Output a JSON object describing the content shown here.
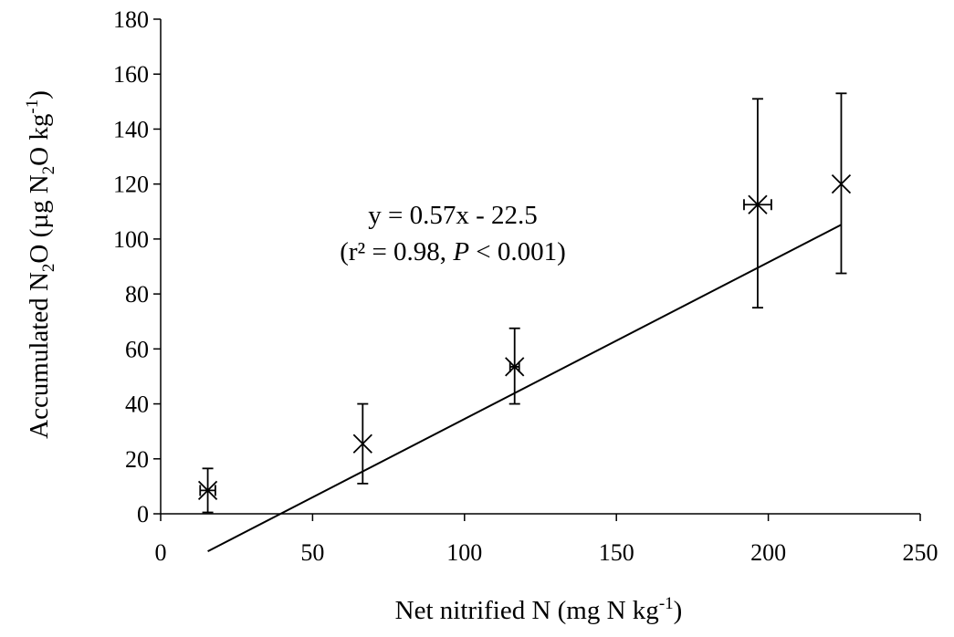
{
  "chart_data": {
    "type": "scatter",
    "xlabel": {
      "main": "Net nitrified  N (mg N kg",
      "sup": "-1",
      "close": ")"
    },
    "ylabel": {
      "part1": "Accumulated  N",
      "sub": "2",
      "part2": "O (µg N",
      "sub2": "2",
      "part3": "O kg",
      "sup": "-1",
      "close": ")"
    },
    "xlim": [
      0,
      250
    ],
    "ylim": [
      0,
      180
    ],
    "xticks": [
      0,
      50,
      100,
      150,
      200,
      250
    ],
    "yticks": [
      0,
      20,
      40,
      60,
      80,
      100,
      120,
      140,
      160,
      180
    ],
    "grid": false,
    "points": [
      {
        "x": 15.5,
        "y": 8.5,
        "y_err_low": 8,
        "y_err_high": 8,
        "x_err": 2.5
      },
      {
        "x": 66.5,
        "y": 25.5,
        "y_err_low": 14.5,
        "y_err_high": 14.5,
        "x_err": 0
      },
      {
        "x": 116.5,
        "y": 53.5,
        "y_err_low": 13.5,
        "y_err_high": 14,
        "x_err": 1.5
      },
      {
        "x": 196.5,
        "y": 112.5,
        "y_err_low": 37.5,
        "y_err_high": 38.5,
        "x_err": 4.5
      },
      {
        "x": 224,
        "y": 120,
        "y_err_low": 32.5,
        "y_err_high": 33,
        "x_err": 0
      }
    ],
    "trendline": {
      "slope": 0.57,
      "intercept": -22.5,
      "x_start": 15.5,
      "x_end": 224
    },
    "annotation": {
      "line1": "y = 0.57x  - 22.5",
      "line2_a": "(r² = 0.98, ",
      "line2_p": "P",
      "line2_b": " < 0.001)"
    }
  }
}
